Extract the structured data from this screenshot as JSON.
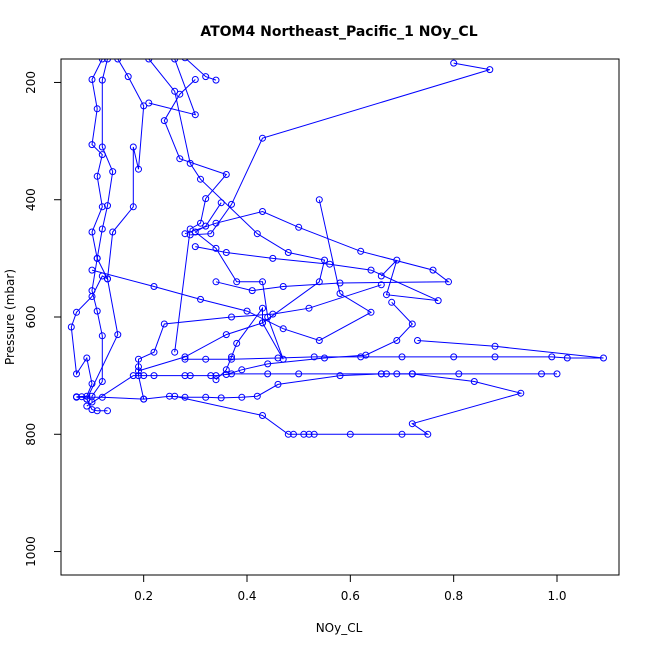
{
  "chart_data": {
    "type": "line",
    "title": "ATOM4 Northeast_Pacific_1 NOy_CL",
    "xlabel": "NOy_CL",
    "ylabel": "Pressure (mbar)",
    "xlim": [
      0.04,
      1.12
    ],
    "ylim": [
      1040,
      160
    ],
    "y_reversed": true,
    "x_ticks": [
      0.2,
      0.4,
      0.6,
      0.8,
      1.0
    ],
    "x_tick_labels": [
      "0.2",
      "0.4",
      "0.6",
      "0.8",
      "1.0"
    ],
    "y_ticks": [
      200,
      400,
      600,
      800,
      1000
    ],
    "y_tick_labels": [
      "200",
      "400",
      "600",
      "800",
      "1000"
    ],
    "grid": false,
    "colors": {
      "series": "#0000ff",
      "axes": "#000000",
      "background": "#ffffff"
    },
    "series": [
      {
        "points": [
          [
            0.13,
            760
          ],
          [
            0.11,
            760
          ],
          [
            0.1,
            758
          ],
          [
            0.09,
            740
          ],
          [
            0.08,
            736
          ],
          [
            0.07,
            736
          ],
          [
            0.09,
            735
          ],
          [
            0.1,
            714
          ],
          [
            0.09,
            670
          ],
          [
            0.07,
            697
          ],
          [
            0.06,
            617
          ],
          [
            0.07,
            592
          ],
          [
            0.1,
            565
          ],
          [
            0.12,
            530
          ],
          [
            0.13,
            535
          ],
          [
            0.11,
            500
          ],
          [
            0.1,
            455
          ],
          [
            0.12,
            412
          ],
          [
            0.11,
            360
          ],
          [
            0.12,
            323
          ],
          [
            0.1,
            306
          ],
          [
            0.11,
            245
          ],
          [
            0.1,
            195
          ],
          [
            0.12,
            160
          ]
        ]
      },
      {
        "points": [
          [
            0.1,
            745
          ],
          [
            0.1,
            735
          ],
          [
            0.12,
            710
          ],
          [
            0.12,
            632
          ],
          [
            0.11,
            590
          ],
          [
            0.1,
            555
          ],
          [
            0.11,
            500
          ],
          [
            0.12,
            450
          ],
          [
            0.13,
            410
          ],
          [
            0.14,
            352
          ],
          [
            0.12,
            310
          ],
          [
            0.12,
            196
          ],
          [
            0.13,
            160
          ]
        ]
      },
      {
        "points": [
          [
            0.09,
            740
          ],
          [
            0.15,
            630
          ],
          [
            0.13,
            535
          ],
          [
            0.14,
            455
          ],
          [
            0.18,
            412
          ],
          [
            0.18,
            310
          ],
          [
            0.19,
            348
          ],
          [
            0.2,
            240
          ],
          [
            0.17,
            190
          ],
          [
            0.15,
            160
          ]
        ]
      },
      {
        "points": [
          [
            0.07,
            737
          ],
          [
            0.12,
            737
          ],
          [
            0.2,
            740
          ],
          [
            0.19,
            700
          ],
          [
            0.19,
            685
          ],
          [
            0.19,
            672
          ],
          [
            0.22,
            660
          ],
          [
            0.24,
            612
          ],
          [
            0.37,
            600
          ],
          [
            0.45,
            595
          ],
          [
            0.52,
            585
          ],
          [
            0.66,
            545
          ]
        ]
      },
      {
        "points": [
          [
            0.09,
            752
          ],
          [
            0.18,
            700
          ],
          [
            0.2,
            700
          ],
          [
            0.22,
            700
          ],
          [
            0.28,
            700
          ],
          [
            0.29,
            700
          ],
          [
            0.33,
            700
          ],
          [
            0.34,
            700
          ],
          [
            0.37,
            697
          ],
          [
            0.44,
            697
          ],
          [
            0.5,
            697
          ],
          [
            0.66,
            697
          ],
          [
            0.67,
            697
          ],
          [
            0.69,
            697
          ],
          [
            0.72,
            697
          ],
          [
            0.81,
            697
          ],
          [
            0.97,
            697
          ],
          [
            1.0,
            697
          ]
        ]
      },
      {
        "points": [
          [
            0.2,
            740
          ],
          [
            0.25,
            735
          ],
          [
            0.28,
            737
          ],
          [
            0.32,
            737
          ],
          [
            0.35,
            738
          ],
          [
            0.39,
            737
          ],
          [
            0.42,
            735
          ],
          [
            0.46,
            715
          ],
          [
            0.58,
            700
          ],
          [
            0.66,
            697
          ],
          [
            0.72,
            697
          ]
        ]
      },
      {
        "points": [
          [
            0.34,
            707
          ],
          [
            0.36,
            690
          ],
          [
            0.37,
            668
          ],
          [
            0.38,
            645
          ],
          [
            0.43,
            585
          ],
          [
            0.43,
            610
          ],
          [
            0.47,
            672
          ],
          [
            0.44,
            600
          ],
          [
            0.43,
            540
          ],
          [
            0.38,
            540
          ],
          [
            0.34,
            483
          ],
          [
            0.3,
            455
          ],
          [
            0.32,
            445
          ],
          [
            0.35,
            405
          ]
        ]
      },
      {
        "points": [
          [
            0.28,
            672
          ],
          [
            0.32,
            672
          ],
          [
            0.37,
            672
          ],
          [
            0.46,
            670
          ],
          [
            0.53,
            668
          ],
          [
            0.62,
            668
          ],
          [
            0.7,
            668
          ],
          [
            0.8,
            668
          ],
          [
            0.88,
            668
          ],
          [
            0.99,
            668
          ],
          [
            1.02,
            670
          ],
          [
            1.09,
            670
          ],
          [
            0.88,
            650
          ],
          [
            0.73,
            640
          ]
        ]
      },
      {
        "points": [
          [
            0.26,
            660
          ],
          [
            0.29,
            450
          ],
          [
            0.31,
            440
          ],
          [
            0.32,
            398
          ],
          [
            0.36,
            357
          ],
          [
            0.27,
            330
          ],
          [
            0.24,
            265
          ],
          [
            0.27,
            220
          ],
          [
            0.3,
            195
          ]
        ]
      },
      {
        "points": [
          [
            0.26,
            735
          ],
          [
            0.43,
            768
          ],
          [
            0.48,
            800
          ],
          [
            0.49,
            800
          ],
          [
            0.51,
            800
          ],
          [
            0.52,
            800
          ],
          [
            0.53,
            800
          ],
          [
            0.6,
            800
          ],
          [
            0.7,
            800
          ],
          [
            0.75,
            800
          ],
          [
            0.72,
            782
          ],
          [
            0.93,
            730
          ],
          [
            0.84,
            710
          ],
          [
            0.72,
            697
          ]
        ]
      },
      {
        "points": [
          [
            0.36,
            698
          ],
          [
            0.39,
            690
          ],
          [
            0.44,
            680
          ],
          [
            0.55,
            670
          ],
          [
            0.63,
            665
          ],
          [
            0.69,
            640
          ],
          [
            0.72,
            612
          ],
          [
            0.68,
            575
          ]
        ]
      },
      {
        "points": [
          [
            0.19,
            692
          ],
          [
            0.28,
            668
          ],
          [
            0.36,
            630
          ],
          [
            0.43,
            610
          ],
          [
            0.54,
            540
          ],
          [
            0.55,
            503
          ],
          [
            0.48,
            490
          ],
          [
            0.42,
            458
          ],
          [
            0.31,
            365
          ],
          [
            0.29,
            338
          ],
          [
            0.26,
            215
          ],
          [
            0.21,
            160
          ]
        ]
      },
      {
        "points": [
          [
            0.1,
            520
          ],
          [
            0.22,
            548
          ],
          [
            0.31,
            570
          ],
          [
            0.4,
            590
          ],
          [
            0.47,
            620
          ],
          [
            0.54,
            640
          ],
          [
            0.64,
            592
          ],
          [
            0.58,
            560
          ],
          [
            0.54,
            400
          ]
        ]
      },
      {
        "points": [
          [
            0.28,
            458
          ],
          [
            0.34,
            440
          ],
          [
            0.43,
            420
          ],
          [
            0.5,
            447
          ],
          [
            0.62,
            488
          ],
          [
            0.76,
            520
          ],
          [
            0.79,
            540
          ],
          [
            0.58,
            542
          ],
          [
            0.47,
            548
          ],
          [
            0.41,
            555
          ],
          [
            0.34,
            540
          ]
        ]
      },
      {
        "points": [
          [
            0.3,
            480
          ],
          [
            0.36,
            490
          ],
          [
            0.45,
            500
          ],
          [
            0.56,
            510
          ],
          [
            0.64,
            520
          ],
          [
            0.77,
            572
          ],
          [
            0.67,
            562
          ],
          [
            0.69,
            503
          ],
          [
            0.66,
            530
          ]
        ]
      },
      {
        "points": [
          [
            0.29,
            460
          ],
          [
            0.33,
            458
          ],
          [
            0.37,
            408
          ],
          [
            0.43,
            295
          ],
          [
            0.87,
            178
          ],
          [
            0.8,
            167
          ]
        ]
      },
      {
        "points": [
          [
            0.21,
            235
          ],
          [
            0.3,
            255
          ],
          [
            0.26,
            160
          ],
          [
            0.28,
            158
          ],
          [
            0.32,
            190
          ],
          [
            0.34,
            196
          ]
        ]
      }
    ]
  }
}
